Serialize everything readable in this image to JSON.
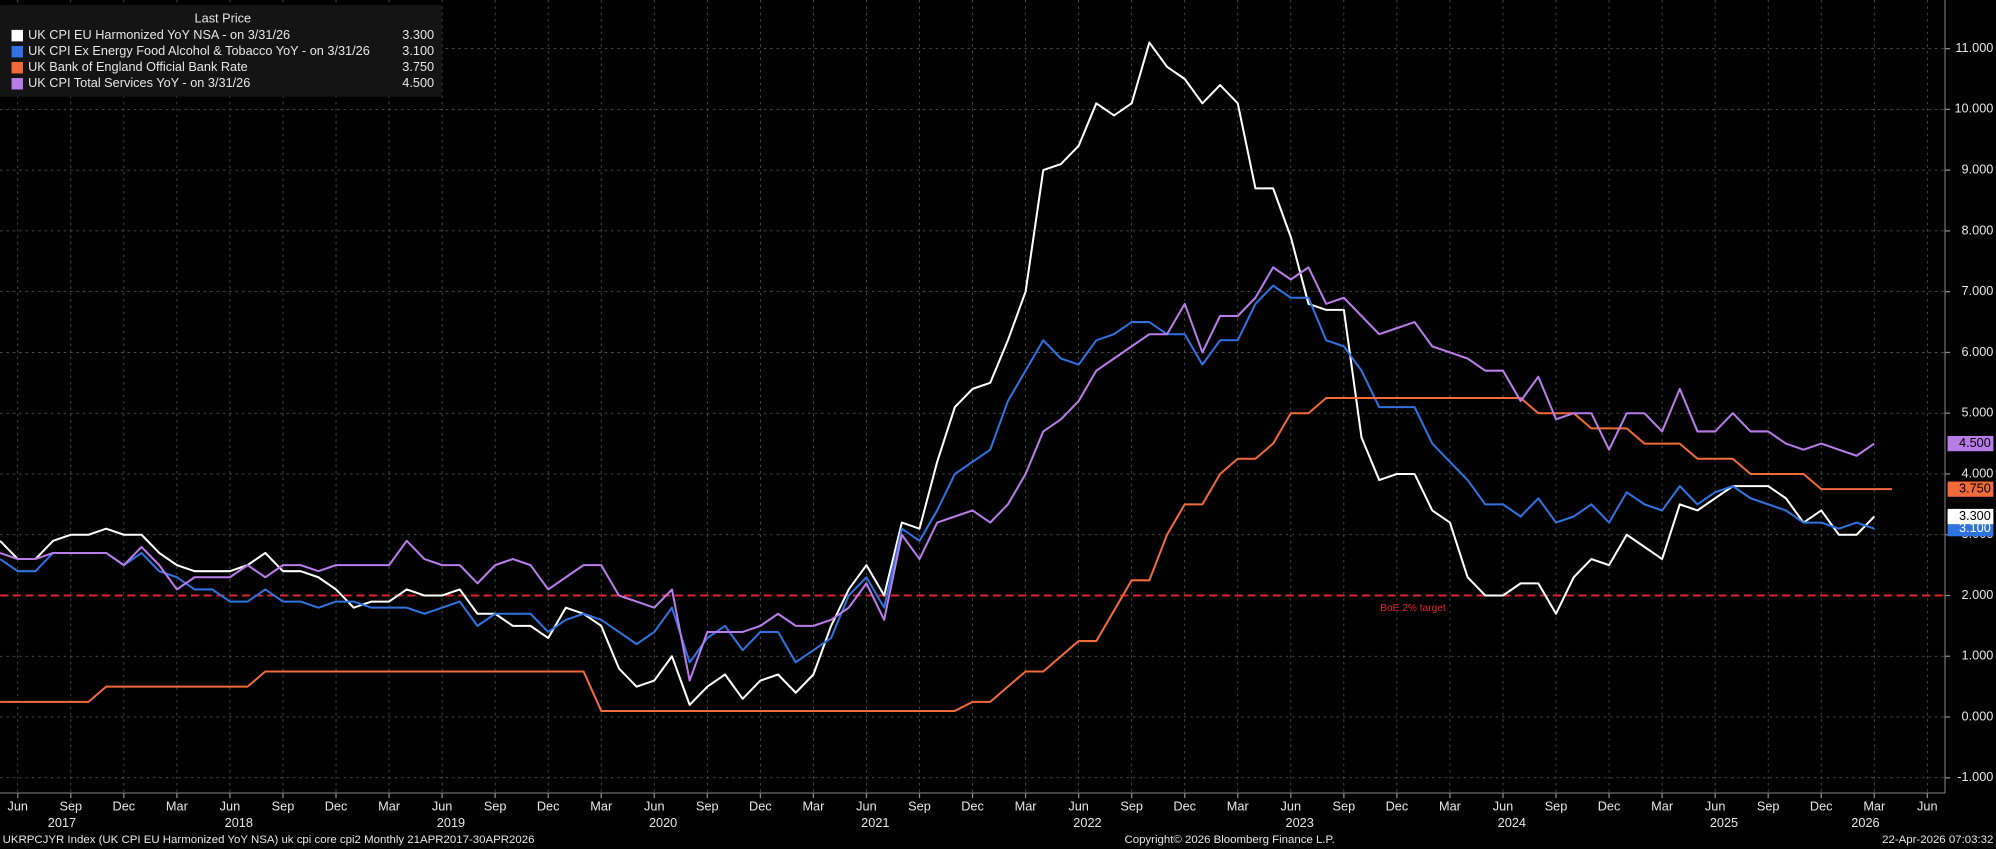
{
  "chart_data": {
    "type": "line",
    "legend_title": "Last Price",
    "x": [
      "2017-05",
      "2017-06",
      "2017-07",
      "2017-08",
      "2017-09",
      "2017-10",
      "2017-11",
      "2017-12",
      "2018-01",
      "2018-02",
      "2018-03",
      "2018-04",
      "2018-05",
      "2018-06",
      "2018-07",
      "2018-08",
      "2018-09",
      "2018-10",
      "2018-11",
      "2018-12",
      "2019-01",
      "2019-02",
      "2019-03",
      "2019-04",
      "2019-05",
      "2019-06",
      "2019-07",
      "2019-08",
      "2019-09",
      "2019-10",
      "2019-11",
      "2019-12",
      "2020-01",
      "2020-02",
      "2020-03",
      "2020-04",
      "2020-05",
      "2020-06",
      "2020-07",
      "2020-08",
      "2020-09",
      "2020-10",
      "2020-11",
      "2020-12",
      "2021-01",
      "2021-02",
      "2021-03",
      "2021-04",
      "2021-05",
      "2021-06",
      "2021-07",
      "2021-08",
      "2021-09",
      "2021-10",
      "2021-11",
      "2021-12",
      "2022-01",
      "2022-02",
      "2022-03",
      "2022-04",
      "2022-05",
      "2022-06",
      "2022-07",
      "2022-08",
      "2022-09",
      "2022-10",
      "2022-11",
      "2022-12",
      "2023-01",
      "2023-02",
      "2023-03",
      "2023-04",
      "2023-05",
      "2023-06",
      "2023-07",
      "2023-08",
      "2023-09",
      "2023-10",
      "2023-11",
      "2023-12",
      "2024-01",
      "2024-02",
      "2024-03",
      "2024-04",
      "2024-05",
      "2024-06",
      "2024-07",
      "2024-08",
      "2024-09",
      "2024-10",
      "2024-11",
      "2024-12",
      "2025-01",
      "2025-02",
      "2025-03",
      "2025-04",
      "2025-05",
      "2025-06",
      "2025-07",
      "2025-08",
      "2025-09",
      "2025-10",
      "2025-11",
      "2025-12",
      "2026-01",
      "2026-02",
      "2026-03",
      "2026-04"
    ],
    "series": [
      {
        "name": "UK CPI EU Harmonized YoY NSA -  on 3/31/26",
        "color": "#ffffff",
        "last_price": "3.300",
        "tag_text": "#000000",
        "values": [
          2.9,
          2.6,
          2.6,
          2.9,
          3.0,
          3.0,
          3.1,
          3.0,
          3.0,
          2.7,
          2.5,
          2.4,
          2.4,
          2.4,
          2.5,
          2.7,
          2.4,
          2.4,
          2.3,
          2.1,
          1.8,
          1.9,
          1.9,
          2.1,
          2.0,
          2.0,
          2.1,
          1.7,
          1.7,
          1.5,
          1.5,
          1.3,
          1.8,
          1.7,
          1.5,
          0.8,
          0.5,
          0.6,
          1.0,
          0.2,
          0.5,
          0.7,
          0.3,
          0.6,
          0.7,
          0.4,
          0.7,
          1.5,
          2.1,
          2.5,
          2.0,
          3.2,
          3.1,
          4.2,
          5.1,
          5.4,
          5.5,
          6.2,
          7.0,
          9.0,
          9.1,
          9.4,
          10.1,
          9.9,
          10.1,
          11.1,
          10.7,
          10.5,
          10.1,
          10.4,
          10.1,
          8.7,
          8.7,
          7.9,
          6.8,
          6.7,
          6.7,
          4.6,
          3.9,
          4.0,
          4.0,
          3.4,
          3.2,
          2.3,
          2.0,
          2.0,
          2.2,
          2.2,
          1.7,
          2.3,
          2.6,
          2.5,
          3.0,
          2.8,
          2.6,
          3.5,
          3.4,
          3.6,
          3.8,
          3.8,
          3.8,
          3.6,
          3.2,
          3.4,
          3.0,
          3.0,
          3.3,
          null
        ]
      },
      {
        "name": "UK CPI Ex Energy Food Alcohol & Tobacco YoY -  on 3/31/26",
        "color": "#2f72e0",
        "last_price": "3.100",
        "tag_text": "#ffffff",
        "values": [
          2.6,
          2.4,
          2.4,
          2.7,
          2.7,
          2.7,
          2.7,
          2.5,
          2.7,
          2.4,
          2.3,
          2.1,
          2.1,
          1.9,
          1.9,
          2.1,
          1.9,
          1.9,
          1.8,
          1.9,
          1.9,
          1.8,
          1.8,
          1.8,
          1.7,
          1.8,
          1.9,
          1.5,
          1.7,
          1.7,
          1.7,
          1.4,
          1.6,
          1.7,
          1.6,
          1.4,
          1.2,
          1.4,
          1.8,
          0.9,
          1.3,
          1.5,
          1.1,
          1.4,
          1.4,
          0.9,
          1.1,
          1.3,
          2.0,
          2.3,
          1.8,
          3.1,
          2.9,
          3.4,
          4.0,
          4.2,
          4.4,
          5.2,
          5.7,
          6.2,
          5.9,
          5.8,
          6.2,
          6.3,
          6.5,
          6.5,
          6.3,
          6.3,
          5.8,
          6.2,
          6.2,
          6.8,
          7.1,
          6.9,
          6.9,
          6.2,
          6.1,
          5.7,
          5.1,
          5.1,
          5.1,
          4.5,
          4.2,
          3.9,
          3.5,
          3.5,
          3.3,
          3.6,
          3.2,
          3.3,
          3.5,
          3.2,
          3.7,
          3.5,
          3.4,
          3.8,
          3.5,
          3.7,
          3.8,
          3.6,
          3.5,
          3.4,
          3.2,
          3.2,
          3.1,
          3.2,
          3.1,
          null
        ]
      },
      {
        "name": "UK Bank of England Official Bank Rate",
        "color": "#f06a3a",
        "last_price": "3.750",
        "tag_text": "#000000",
        "values": [
          0.25,
          0.25,
          0.25,
          0.25,
          0.25,
          0.25,
          0.5,
          0.5,
          0.5,
          0.5,
          0.5,
          0.5,
          0.5,
          0.5,
          0.5,
          0.75,
          0.75,
          0.75,
          0.75,
          0.75,
          0.75,
          0.75,
          0.75,
          0.75,
          0.75,
          0.75,
          0.75,
          0.75,
          0.75,
          0.75,
          0.75,
          0.75,
          0.75,
          0.75,
          0.1,
          0.1,
          0.1,
          0.1,
          0.1,
          0.1,
          0.1,
          0.1,
          0.1,
          0.1,
          0.1,
          0.1,
          0.1,
          0.1,
          0.1,
          0.1,
          0.1,
          0.1,
          0.1,
          0.1,
          0.1,
          0.25,
          0.25,
          0.5,
          0.75,
          0.75,
          1.0,
          1.25,
          1.25,
          1.75,
          2.25,
          2.25,
          3.0,
          3.5,
          3.5,
          4.0,
          4.25,
          4.25,
          4.5,
          5.0,
          5.0,
          5.25,
          5.25,
          5.25,
          5.25,
          5.25,
          5.25,
          5.25,
          5.25,
          5.25,
          5.25,
          5.25,
          5.25,
          5.0,
          5.0,
          5.0,
          4.75,
          4.75,
          4.75,
          4.5,
          4.5,
          4.5,
          4.25,
          4.25,
          4.25,
          4.0,
          4.0,
          4.0,
          4.0,
          3.75,
          3.75,
          3.75,
          3.75,
          3.75
        ]
      },
      {
        "name": "UK CPI Total Services YoY -  on 3/31/26",
        "color": "#b87ce8",
        "last_price": "4.500",
        "tag_text": "#000000",
        "values": [
          2.7,
          2.6,
          2.6,
          2.7,
          2.7,
          2.7,
          2.7,
          2.5,
          2.8,
          2.5,
          2.1,
          2.3,
          2.3,
          2.3,
          2.5,
          2.3,
          2.5,
          2.5,
          2.4,
          2.5,
          2.5,
          2.5,
          2.5,
          2.9,
          2.6,
          2.5,
          2.5,
          2.2,
          2.5,
          2.6,
          2.5,
          2.1,
          2.3,
          2.5,
          2.5,
          2.0,
          1.9,
          1.8,
          2.1,
          0.6,
          1.4,
          1.4,
          1.4,
          1.5,
          1.7,
          1.5,
          1.5,
          1.6,
          1.8,
          2.2,
          1.6,
          3.0,
          2.6,
          3.2,
          3.3,
          3.4,
          3.2,
          3.5,
          4.0,
          4.7,
          4.9,
          5.2,
          5.7,
          5.9,
          6.1,
          6.3,
          6.3,
          6.8,
          6.0,
          6.6,
          6.6,
          6.9,
          7.4,
          7.2,
          7.4,
          6.8,
          6.9,
          6.6,
          6.3,
          6.4,
          6.5,
          6.1,
          6.0,
          5.9,
          5.7,
          5.7,
          5.2,
          5.6,
          4.9,
          5.0,
          5.0,
          4.4,
          5.0,
          5.0,
          4.7,
          5.4,
          4.7,
          4.7,
          5.0,
          4.7,
          4.7,
          4.5,
          4.4,
          4.5,
          4.4,
          4.3,
          4.5,
          null
        ]
      }
    ],
    "xlim": [
      "2017-05",
      "2026-07"
    ],
    "xticks": [
      {
        "value": "2017-06",
        "label": "Jun"
      },
      {
        "value": "2017-09",
        "label": "Sep"
      },
      {
        "value": "2017-12",
        "label": "Dec"
      },
      {
        "value": "2018-03",
        "label": "Mar"
      },
      {
        "value": "2018-06",
        "label": "Jun"
      },
      {
        "value": "2018-09",
        "label": "Sep"
      },
      {
        "value": "2018-12",
        "label": "Dec"
      },
      {
        "value": "2019-03",
        "label": "Mar"
      },
      {
        "value": "2019-06",
        "label": "Jun"
      },
      {
        "value": "2019-09",
        "label": "Sep"
      },
      {
        "value": "2019-12",
        "label": "Dec"
      },
      {
        "value": "2020-03",
        "label": "Mar"
      },
      {
        "value": "2020-06",
        "label": "Jun"
      },
      {
        "value": "2020-09",
        "label": "Sep"
      },
      {
        "value": "2020-12",
        "label": "Dec"
      },
      {
        "value": "2021-03",
        "label": "Mar"
      },
      {
        "value": "2021-06",
        "label": "Jun"
      },
      {
        "value": "2021-09",
        "label": "Sep"
      },
      {
        "value": "2021-12",
        "label": "Dec"
      },
      {
        "value": "2022-03",
        "label": "Mar"
      },
      {
        "value": "2022-06",
        "label": "Jun"
      },
      {
        "value": "2022-09",
        "label": "Sep"
      },
      {
        "value": "2022-12",
        "label": "Dec"
      },
      {
        "value": "2023-03",
        "label": "Mar"
      },
      {
        "value": "2023-06",
        "label": "Jun"
      },
      {
        "value": "2023-09",
        "label": "Sep"
      },
      {
        "value": "2023-12",
        "label": "Dec"
      },
      {
        "value": "2024-03",
        "label": "Mar"
      },
      {
        "value": "2024-06",
        "label": "Jun"
      },
      {
        "value": "2024-09",
        "label": "Sep"
      },
      {
        "value": "2024-12",
        "label": "Dec"
      },
      {
        "value": "2025-03",
        "label": "Mar"
      },
      {
        "value": "2025-06",
        "label": "Jun"
      },
      {
        "value": "2025-09",
        "label": "Sep"
      },
      {
        "value": "2025-12",
        "label": "Dec"
      },
      {
        "value": "2026-03",
        "label": "Mar"
      },
      {
        "value": "2026-06",
        "label": "Jun"
      }
    ],
    "x_year_labels": [
      "2017",
      "2018",
      "2019",
      "2020",
      "2021",
      "2022",
      "2023",
      "2024",
      "2025",
      "2026"
    ],
    "ylim": [
      -1.25,
      11.8
    ],
    "yticks": [
      {
        "value": -1,
        "label": "-1.000"
      },
      {
        "value": 0,
        "label": "0.000"
      },
      {
        "value": 1,
        "label": "1.000"
      },
      {
        "value": 2,
        "label": "2.000"
      },
      {
        "value": 3,
        "label": "3.000"
      },
      {
        "value": 4,
        "label": "4.000"
      },
      {
        "value": 5,
        "label": "5.000"
      },
      {
        "value": 6,
        "label": "6.000"
      },
      {
        "value": 7,
        "label": "7.000"
      },
      {
        "value": 8,
        "label": "8.000"
      },
      {
        "value": 9,
        "label": "9.000"
      },
      {
        "value": 10,
        "label": "10.000"
      },
      {
        "value": 11,
        "label": "11.000"
      }
    ],
    "grid": true,
    "hlines": [
      {
        "value": 2,
        "label": "BoE 2% target",
        "color": "#e0232d"
      }
    ],
    "legend": "upper left",
    "footer_left": "UKRPCJYR Index (UK CPI EU Harmonized YoY NSA) uk cpi core cpi2 Monthly 21APR2017-30APR2026",
    "footer_center": "Copyright© 2026 Bloomberg Finance L.P.",
    "footer_right": "22-Apr-2026 07:03:32"
  }
}
